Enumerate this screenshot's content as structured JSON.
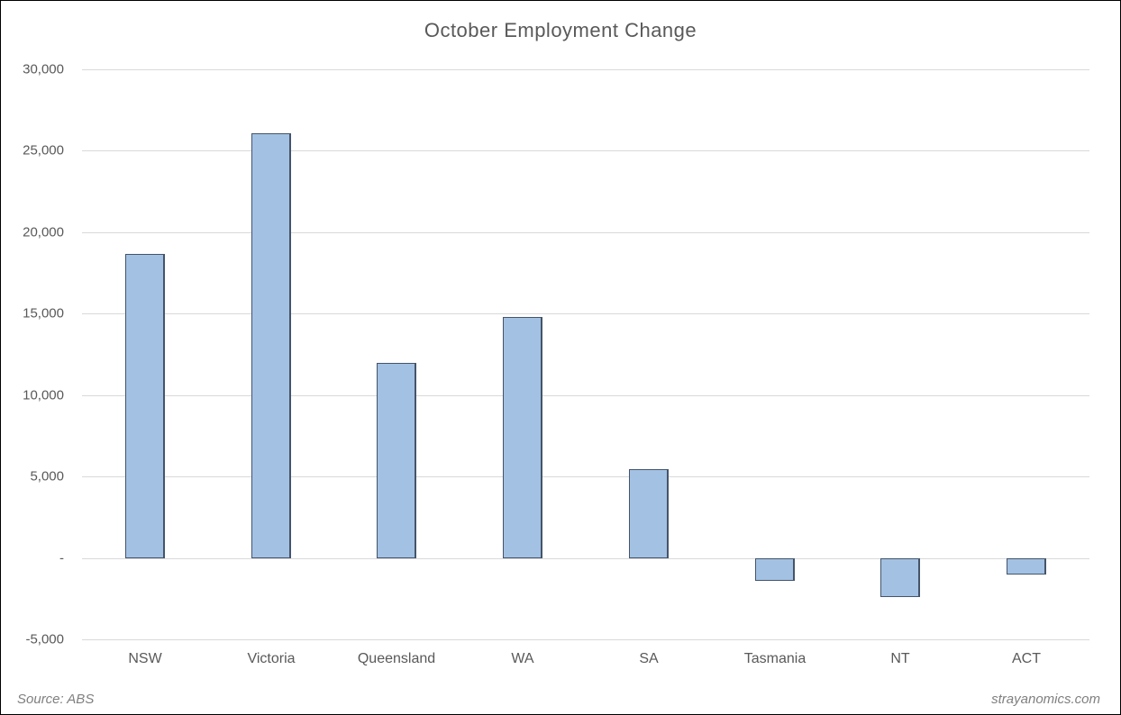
{
  "figure": {
    "title": "October Employment Change",
    "source_note": "Source: ABS",
    "watermark": "strayanomics.com"
  },
  "chart_data": {
    "type": "bar",
    "title": "October Employment Change",
    "categories": [
      "NSW",
      "Victoria",
      "Queensland",
      "WA",
      "SA",
      "Tasmania",
      "NT",
      "ACT"
    ],
    "values": [
      18700,
      26100,
      12000,
      14800,
      5500,
      -1400,
      -2400,
      -1000
    ],
    "xlabel": "",
    "ylabel": "",
    "ylim": [
      -5000,
      30000
    ],
    "ytick_step": 5000,
    "ytick_labels_top_to_bottom": [
      "30,000",
      "25,000",
      "20,000",
      "15,000",
      "10,000",
      "5,000",
      "-",
      "-5,000"
    ],
    "grid": true,
    "legend": false,
    "annotations": {
      "source": "Source: ABS",
      "watermark": "strayanomics.com"
    },
    "colors": {
      "bar_fill": "#a3c1e3",
      "bar_border": "#44546a",
      "gridline": "#d9d9d9",
      "text": "#595959",
      "footer_text": "#7f7f7f",
      "frame_border": "#000000",
      "background": "#ffffff"
    }
  }
}
